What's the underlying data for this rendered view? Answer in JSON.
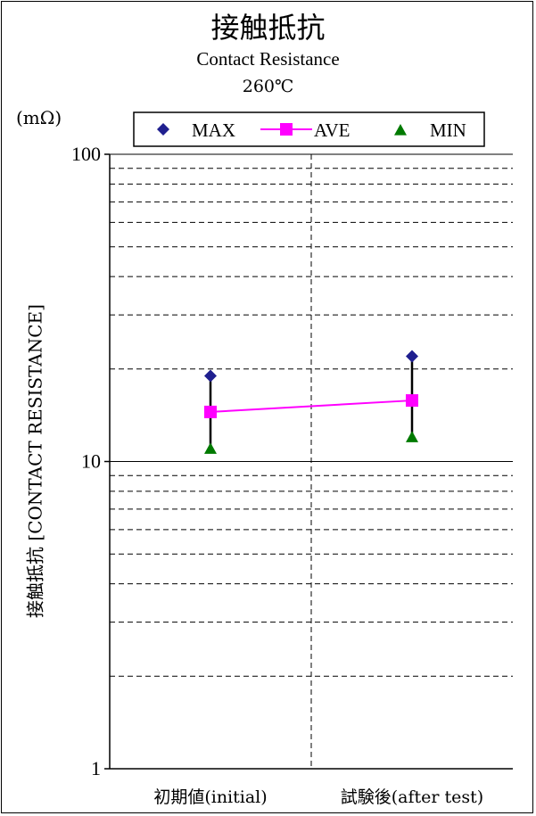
{
  "header": {
    "title_ja": "接触抵抗",
    "title_en": "Contact Resistance",
    "condition": "260℃"
  },
  "unit_label": "(mΩ)",
  "chart_data": {
    "type": "line",
    "title": "接触抵抗",
    "subtitle": "Contact Resistance 260℃",
    "ylabel": "接触抵抗 [CONTACT RESISTANCE]",
    "yunit": "(mΩ)",
    "yscale": "log",
    "ylim": [
      1,
      100
    ],
    "ytick_labels": [
      "1",
      "10",
      "100"
    ],
    "grid": "dashed horizontal minor lines; solid line at 10; dashed vertical divider",
    "legend_position": "top",
    "categories": [
      "初期値(initial)",
      "試験後(after test)"
    ],
    "series": [
      {
        "name": "MAX",
        "values": [
          19,
          22
        ],
        "color": "#1f1f8f",
        "marker": "diamond"
      },
      {
        "name": "AVE",
        "values": [
          14.5,
          15.8
        ],
        "color": "#ff00ff",
        "marker": "square",
        "line": true
      },
      {
        "name": "MIN",
        "values": [
          11,
          12
        ],
        "color": "#007a00",
        "marker": "triangle"
      }
    ]
  }
}
